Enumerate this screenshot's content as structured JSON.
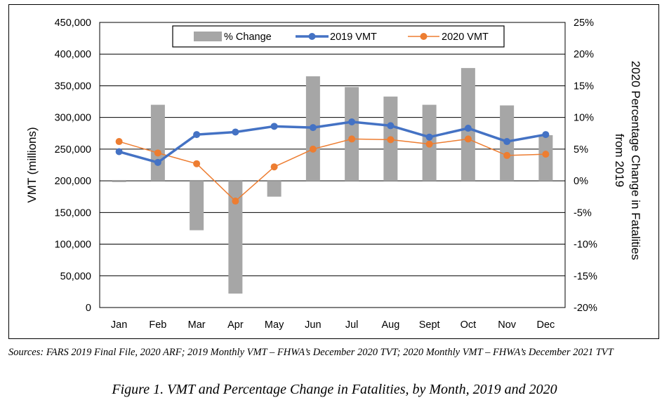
{
  "chart_data": {
    "type": "bar",
    "categories": [
      "Jan",
      "Feb",
      "Mar",
      "Apr",
      "May",
      "Jun",
      "Jul",
      "Aug",
      "Sept",
      "Oct",
      "Nov",
      "Dec"
    ],
    "series": [
      {
        "name": "% Change",
        "type": "bar",
        "axis": "right",
        "color": "#a6a6a6",
        "values": [
          -0.2,
          12.0,
          -7.8,
          -17.8,
          -2.5,
          16.5,
          14.8,
          13.3,
          12.0,
          17.8,
          11.9,
          7.2
        ]
      },
      {
        "name": "2019 VMT",
        "type": "line",
        "axis": "left",
        "color": "#4472c4",
        "values": [
          246000,
          229000,
          273000,
          277000,
          286000,
          284000,
          293000,
          287000,
          269000,
          283000,
          262000,
          273000
        ]
      },
      {
        "name": "2020 VMT",
        "type": "line",
        "axis": "left",
        "color": "#ed7d31",
        "values": [
          262000,
          244000,
          227000,
          168000,
          222000,
          250000,
          266000,
          265000,
          258000,
          266000,
          240000,
          242000
        ]
      }
    ],
    "ylabel": "VMT (millions)",
    "y2label_line1": "2020 Percentage Change in Fatalities",
    "y2label_line2": "from 2019",
    "ylim": [
      0,
      450000
    ],
    "y2lim": [
      -20,
      25
    ],
    "yticks": [
      "0",
      "50,000",
      "100,000",
      "150,000",
      "200,000",
      "250,000",
      "300,000",
      "350,000",
      "400,000",
      "450,000"
    ],
    "y2ticks": [
      "-20%",
      "-15%",
      "-10%",
      "-5%",
      "0%",
      "5%",
      "10%",
      "15%",
      "20%",
      "25%"
    ],
    "legend_position": "top-center",
    "grid": true
  },
  "sources": "Sources: FARS 2019 Final File, 2020 ARF; 2019 Monthly VMT – FHWA’s December 2020 TVT; 2020 Monthly VMT – FHWA’s December 2021 TVT",
  "figure_caption": "Figure 1. VMT and Percentage Change in Fatalities, by Month, 2019 and 2020"
}
